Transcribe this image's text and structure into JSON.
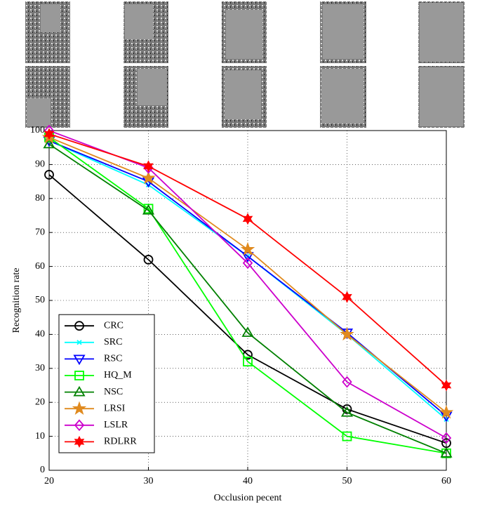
{
  "chart_data": {
    "type": "line",
    "x_label": "Occlusion pecent",
    "y_label": "Recognition rate",
    "x": [
      20,
      30,
      40,
      50,
      60
    ],
    "xlim": [
      20,
      60
    ],
    "xticks": [
      20,
      30,
      40,
      50,
      60
    ],
    "ylim": [
      0,
      100
    ],
    "yticks": [
      0,
      10,
      20,
      30,
      40,
      50,
      60,
      70,
      80,
      90,
      100
    ],
    "grid": true,
    "legend": "lower left",
    "series": [
      {
        "name": "CRC",
        "color": "#000000",
        "marker": "circle",
        "values": [
          87,
          62,
          34,
          18,
          8
        ]
      },
      {
        "name": "SRC",
        "color": "#00ffff",
        "marker": "x",
        "values": [
          97,
          84,
          63,
          40,
          15
        ]
      },
      {
        "name": "RSC",
        "color": "#0000ff",
        "marker": "triangle-down",
        "values": [
          97,
          85,
          63,
          40.5,
          16
        ]
      },
      {
        "name": "HQ_M",
        "color": "#00ff00",
        "marker": "square",
        "values": [
          98,
          77,
          32,
          10,
          5
        ]
      },
      {
        "name": "NSC",
        "color": "#008000",
        "marker": "triangle-up",
        "values": [
          96,
          76.5,
          40.5,
          17,
          5
        ]
      },
      {
        "name": "LRSI",
        "color": "#e08a1e",
        "marker": "star",
        "values": [
          98,
          86,
          65,
          40,
          17
        ]
      },
      {
        "name": "LSLR",
        "color": "#cc00cc",
        "marker": "diamond",
        "values": [
          100,
          89,
          61,
          26,
          9.5
        ]
      },
      {
        "name": "RDLRR",
        "color": "#ff0000",
        "marker": "hexagram",
        "values": [
          99,
          89.5,
          74,
          51,
          25
        ]
      }
    ]
  }
}
